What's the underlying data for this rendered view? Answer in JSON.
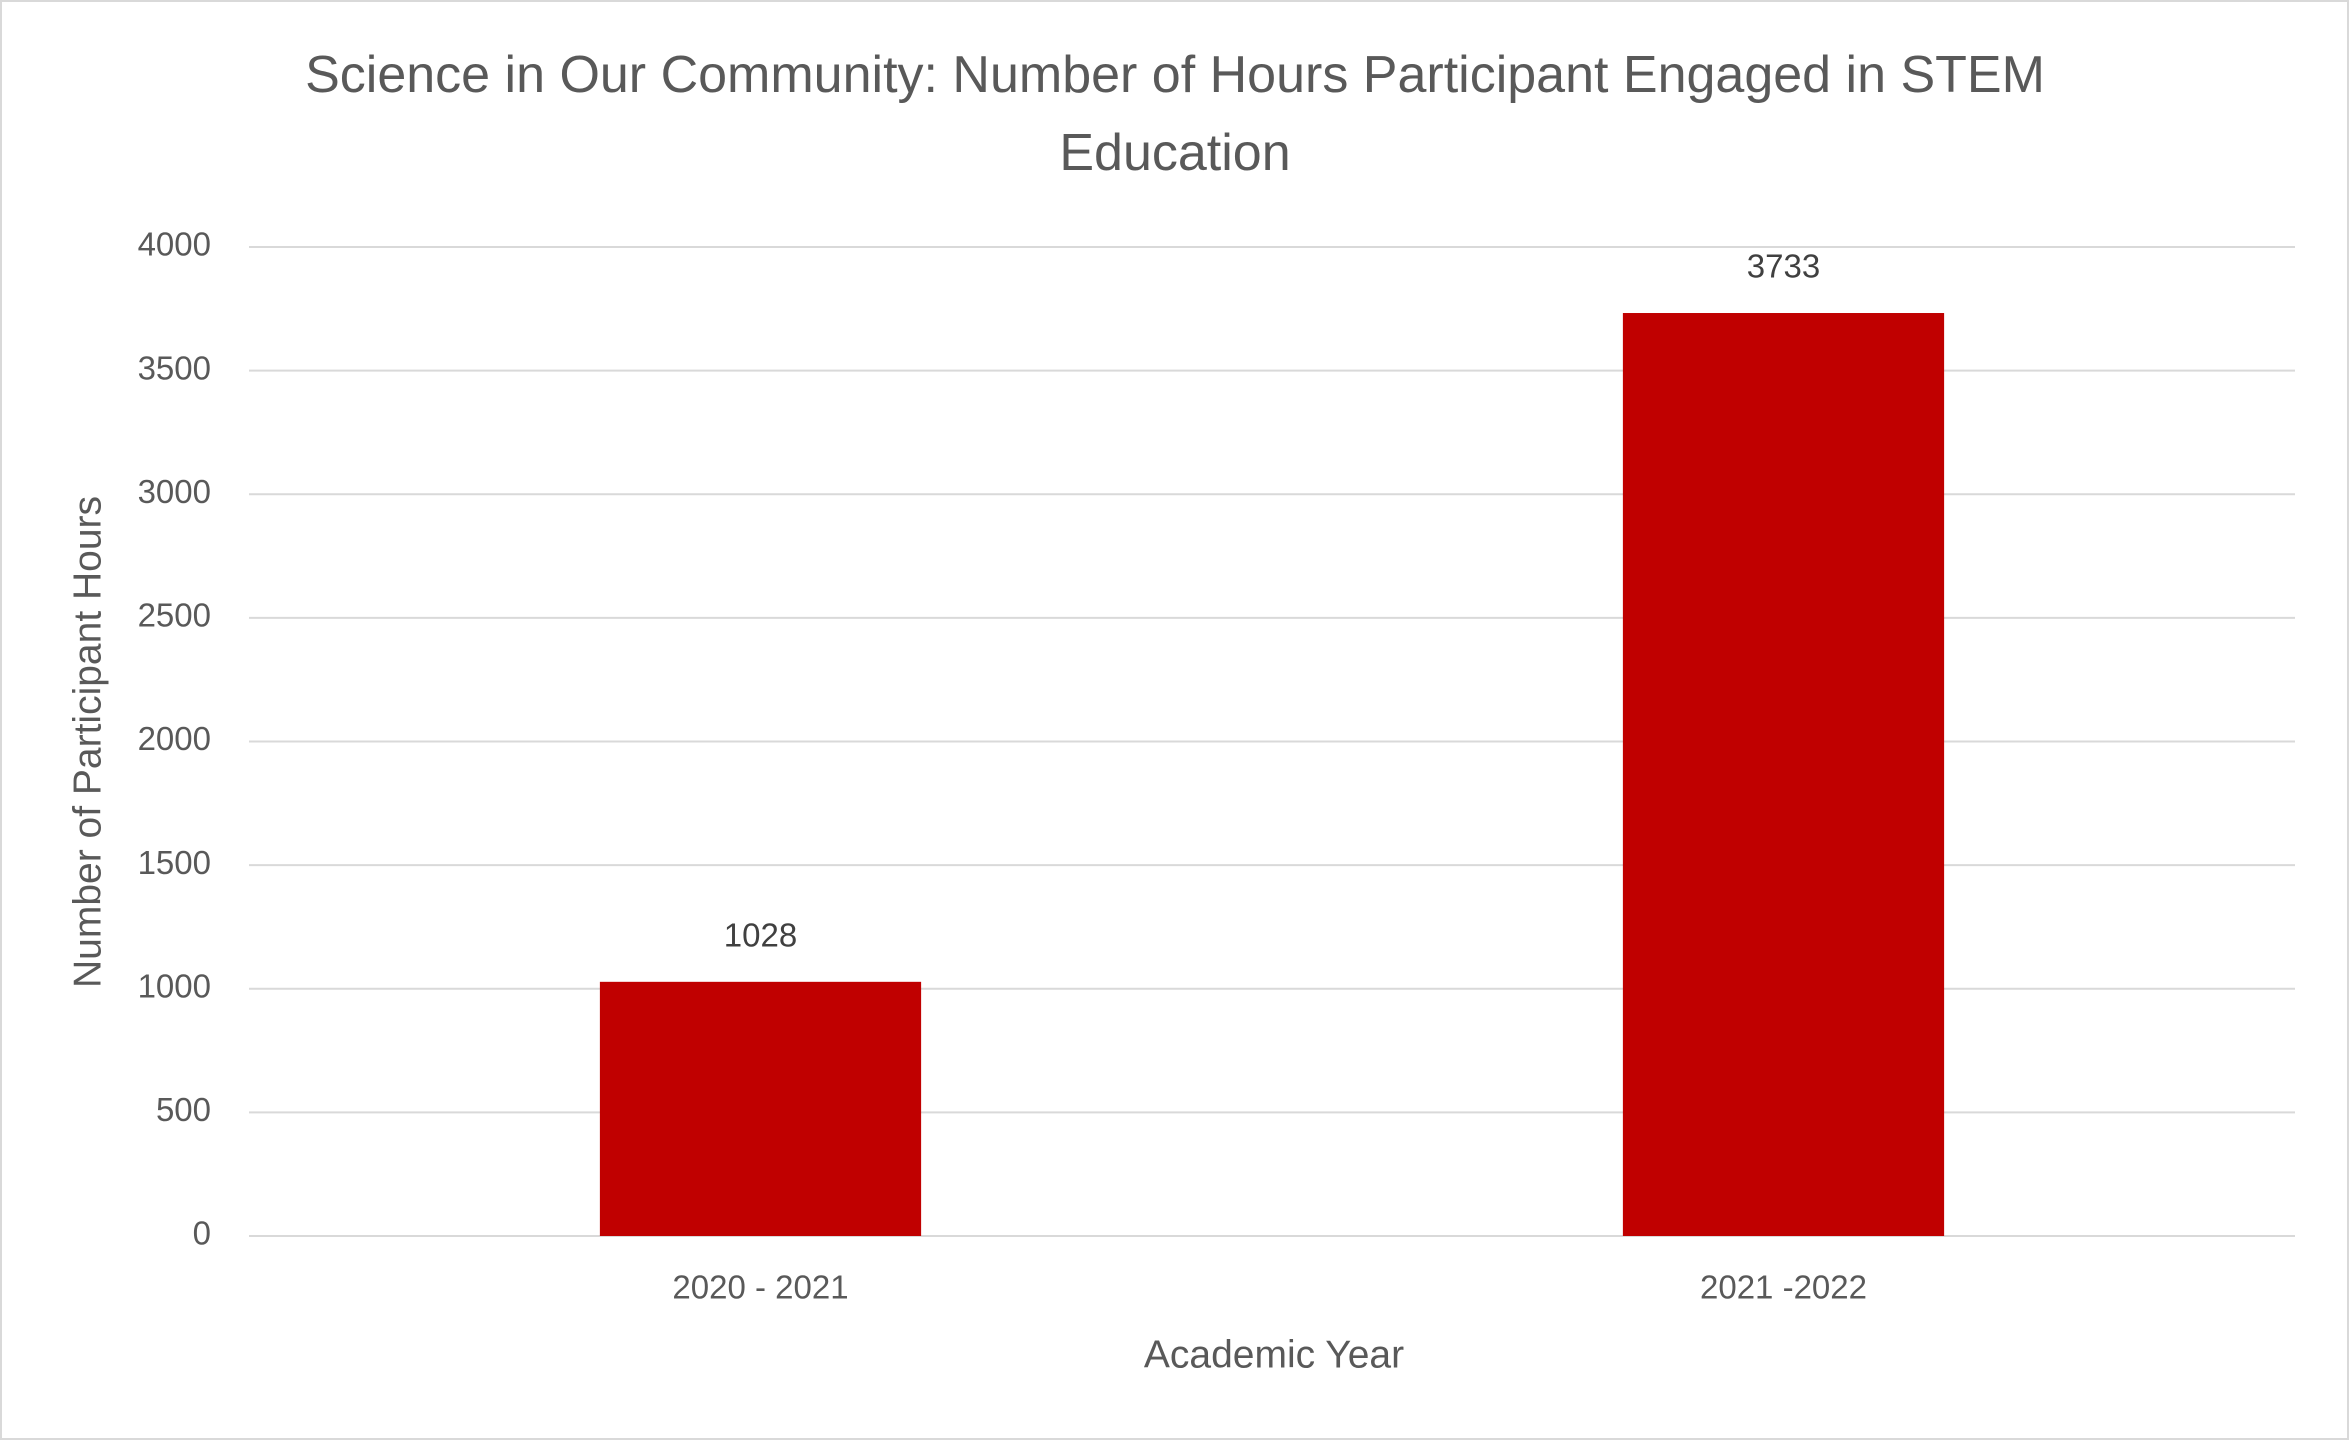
{
  "chart_data": {
    "type": "bar",
    "title": "Science in Our Community: Number of Hours Participant Engaged in STEM Education",
    "x_label": "Academic Year",
    "y_label": "Number of Participant Hours",
    "categories": [
      "2020 - 2021",
      "2021 -2022"
    ],
    "values": [
      1028,
      3733
    ],
    "color": "#c00000",
    "ylim": [
      0,
      4000
    ],
    "yticks": [
      0,
      500,
      1000,
      1500,
      2000,
      2500,
      3000,
      3500,
      4000
    ],
    "grid": true
  }
}
